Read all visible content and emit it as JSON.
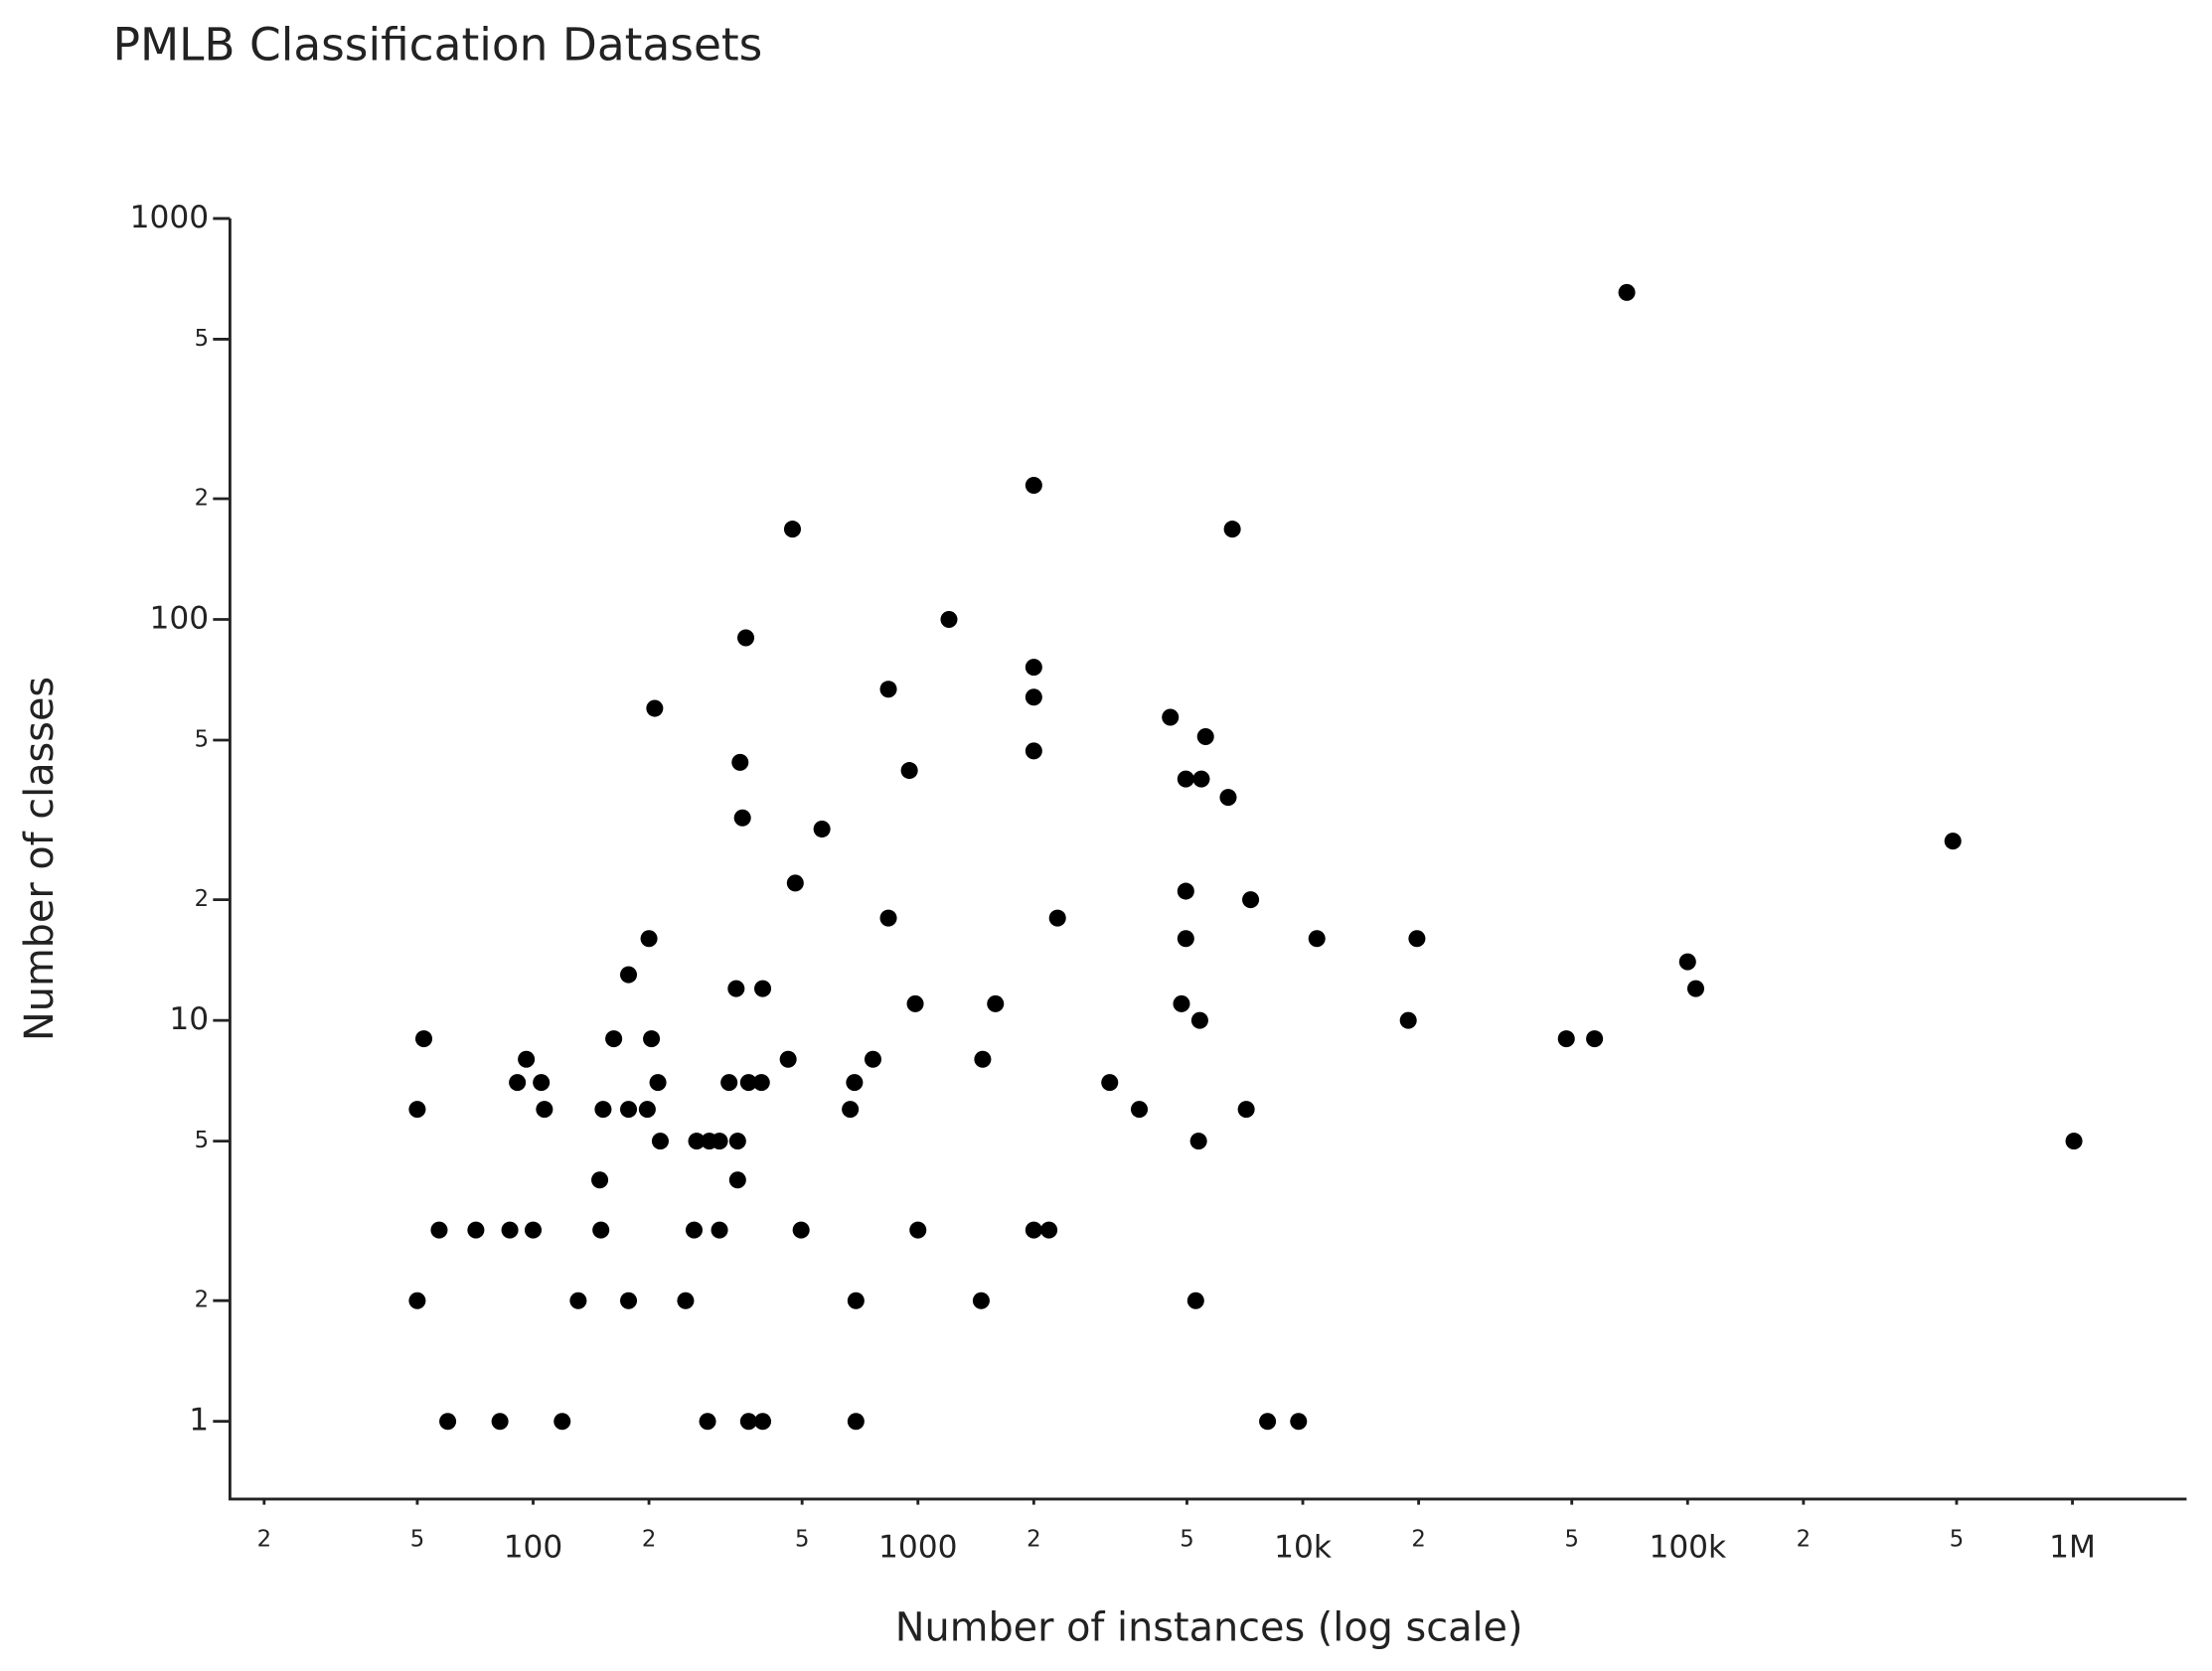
{
  "chart_data": {
    "type": "scatter",
    "title": "PMLB Classification Datasets",
    "xlabel": "Number of instances (log scale)",
    "ylabel": "Number of classes",
    "xscale": "log",
    "yscale": "log",
    "color": "#000000",
    "xlim": [
      16.3,
      1980000
    ],
    "ylim": [
      0.64,
      1000
    ],
    "xticks": [
      {
        "value": 20,
        "label": "2"
      },
      {
        "value": 50,
        "label": "5"
      },
      100,
      {
        "value": 200,
        "label": "2"
      },
      {
        "value": 500,
        "label": "5"
      },
      1000,
      {
        "value": 2000,
        "label": "2"
      },
      {
        "value": 5000,
        "label": "5"
      },
      {
        "value": 10000,
        "label": "10k"
      },
      {
        "value": 20000,
        "label": "2"
      },
      {
        "value": 50000,
        "label": "5"
      },
      {
        "value": 100000,
        "label": "100k"
      },
      {
        "value": 200000,
        "label": "2"
      },
      {
        "value": 500000,
        "label": "5"
      },
      {
        "value": 1000000,
        "label": "1M"
      }
    ],
    "yticks": [
      1,
      2,
      5,
      10,
      {
        "value": 20,
        "label": "2"
      },
      {
        "value": 50,
        "label": "5"
      },
      100,
      {
        "value": 200,
        "label": "2"
      },
      {
        "value": 500,
        "label": "5"
      },
      1000
    ],
    "x": [
      69500,
      2000,
      472,
      6560,
      1204,
      357,
      2000,
      838,
      2000,
      207,
      4527,
      5590,
      2000,
      345,
      950,
      4966,
      5450,
      6400,
      350,
      563,
      489000,
      480,
      4966,
      7320,
      838,
      2305,
      200,
      4966,
      10880,
      19800,
      177,
      100000,
      337,
      395,
      105000,
      984,
      1590,
      4840,
      18800,
      5400,
      52,
      162,
      203,
      48400,
      57300,
      96,
      460,
      764,
      1473,
      91,
      105,
      211,
      323,
      363,
      392,
      684,
      3150,
      50,
      107,
      152,
      177,
      198,
      667,
      3760,
      7130,
      214,
      266,
      287,
      305,
      340,
      5360,
      1009000,
      149,
      340,
      57,
      71,
      87,
      100,
      150,
      262,
      305,
      497,
      1000,
      2000,
      2190,
      50,
      131,
      177,
      249,
      690,
      1460,
      5270,
      60,
      82,
      119,
      284,
      363,
      395,
      690,
      8100,
      9750
    ],
    "y": [
      654,
      216,
      168,
      168,
      100,
      90,
      76,
      67,
      64,
      60,
      57,
      51,
      47,
      44,
      42,
      40,
      40,
      36,
      32,
      30,
      28,
      22,
      21,
      20,
      18,
      18,
      16,
      16,
      16,
      16,
      13,
      14,
      12,
      12,
      12,
      11,
      11,
      11,
      10,
      10,
      9,
      9,
      9,
      9,
      9,
      8,
      8,
      8,
      8,
      7,
      7,
      7,
      7,
      7,
      7,
      7,
      7,
      6,
      6,
      6,
      6,
      6,
      6,
      6,
      6,
      5,
      5,
      5,
      5,
      5,
      5,
      5,
      4,
      4,
      3,
      3,
      3,
      3,
      3,
      3,
      3,
      3,
      3,
      3,
      3,
      2,
      2,
      2,
      2,
      2,
      2,
      2,
      1,
      1,
      1,
      1,
      1,
      1,
      1,
      1,
      1
    ]
  }
}
